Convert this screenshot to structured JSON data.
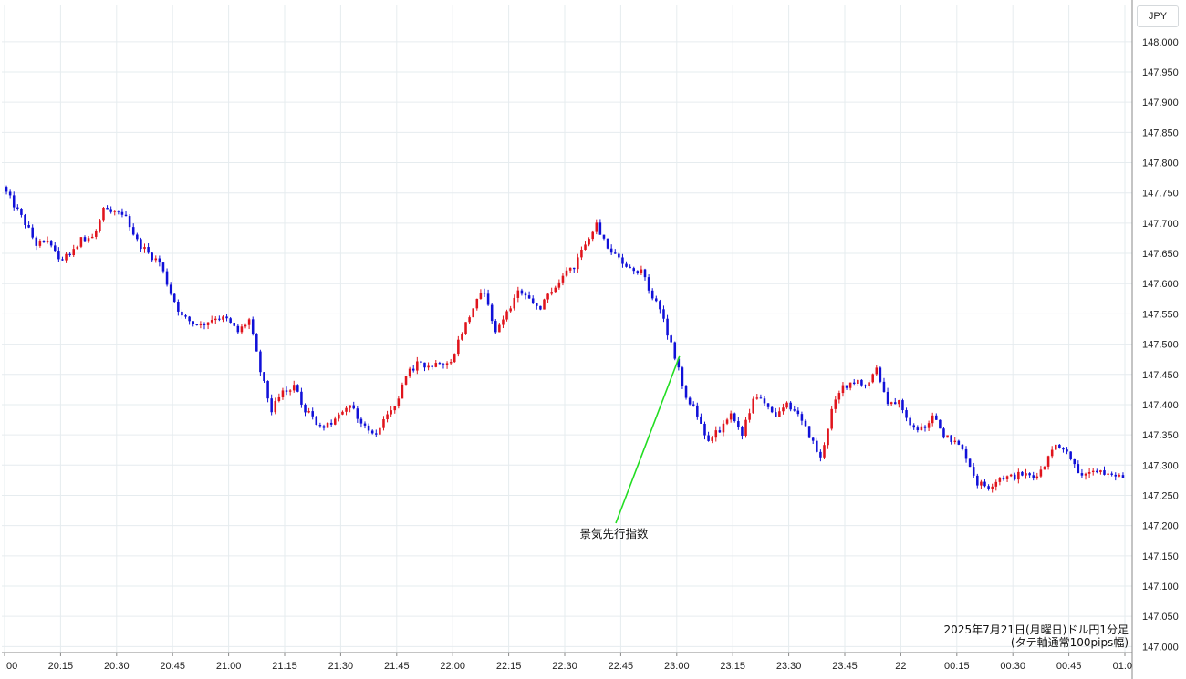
{
  "currency_label": "JPY",
  "caption": {
    "line1": "2025年7月21日(月曜日)ドル円1分足",
    "line2": "(タテ軸通常100pips幅)"
  },
  "colors": {
    "up": "#e0141c",
    "down": "#1010d8",
    "annotation_line": "#22dd22",
    "grid": "#e6ecef"
  },
  "chart_data": {
    "type": "candlestick",
    "title": "",
    "ylim": [
      146.99,
      148.06
    ],
    "y_ticks": [
      "147.000",
      "147.050",
      "147.100",
      "147.150",
      "147.200",
      "147.250",
      "147.300",
      "147.350",
      "147.400",
      "147.450",
      "147.500",
      "147.550",
      "147.600",
      "147.650",
      "147.700",
      "147.750",
      "147.800",
      "147.850",
      "147.900",
      "147.950",
      "148.000"
    ],
    "x_ticks": [
      {
        "label": ":00",
        "t": "20:00"
      },
      {
        "label": "20:15",
        "t": "20:15"
      },
      {
        "label": "20:30",
        "t": "20:30"
      },
      {
        "label": "20:45",
        "t": "20:45"
      },
      {
        "label": "21:00",
        "t": "21:00"
      },
      {
        "label": "21:15",
        "t": "21:15"
      },
      {
        "label": "21:30",
        "t": "21:30"
      },
      {
        "label": "21:45",
        "t": "21:45"
      },
      {
        "label": "22:00",
        "t": "22:00"
      },
      {
        "label": "22:15",
        "t": "22:15"
      },
      {
        "label": "22:30",
        "t": "22:30"
      },
      {
        "label": "22:45",
        "t": "22:45"
      },
      {
        "label": "23:00",
        "t": "23:00"
      },
      {
        "label": "23:15",
        "t": "23:15"
      },
      {
        "label": "23:30",
        "t": "23:30"
      },
      {
        "label": "23:45",
        "t": "23:45"
      },
      {
        "label": "22",
        "t": "00:00"
      },
      {
        "label": "00:15",
        "t": "00:15"
      },
      {
        "label": "00:30",
        "t": "00:30"
      },
      {
        "label": "00:45",
        "t": "00:45"
      },
      {
        "label": "01:0",
        "t": "01:00"
      }
    ],
    "start_time": "20:00",
    "end_time": "01:00",
    "annotation": {
      "text": "景気先行指数",
      "time": "23:00",
      "price": 147.48
    },
    "anchors": [
      [
        "20:00",
        147.76
      ],
      [
        "20:03",
        147.73
      ],
      [
        "20:06",
        147.7
      ],
      [
        "20:09",
        147.665
      ],
      [
        "20:12",
        147.67
      ],
      [
        "20:15",
        147.64
      ],
      [
        "20:18",
        147.65
      ],
      [
        "20:21",
        147.675
      ],
      [
        "20:24",
        147.67
      ],
      [
        "20:27",
        147.72
      ],
      [
        "20:30",
        147.715
      ],
      [
        "20:33",
        147.71
      ],
      [
        "20:36",
        147.67
      ],
      [
        "20:39",
        147.65
      ],
      [
        "20:42",
        147.635
      ],
      [
        "20:45",
        147.585
      ],
      [
        "20:48",
        147.545
      ],
      [
        "20:51",
        147.535
      ],
      [
        "20:54",
        147.535
      ],
      [
        "20:57",
        147.545
      ],
      [
        "21:00",
        147.54
      ],
      [
        "21:03",
        147.52
      ],
      [
        "21:06",
        147.54
      ],
      [
        "21:09",
        147.455
      ],
      [
        "21:12",
        147.39
      ],
      [
        "21:15",
        147.42
      ],
      [
        "21:18",
        147.43
      ],
      [
        "21:21",
        147.39
      ],
      [
        "21:24",
        147.37
      ],
      [
        "21:27",
        147.365
      ],
      [
        "21:30",
        147.38
      ],
      [
        "21:33",
        147.4
      ],
      [
        "21:36",
        147.37
      ],
      [
        "21:39",
        147.35
      ],
      [
        "21:42",
        147.37
      ],
      [
        "21:45",
        147.395
      ],
      [
        "21:48",
        147.445
      ],
      [
        "21:51",
        147.47
      ],
      [
        "21:54",
        147.465
      ],
      [
        "21:57",
        147.47
      ],
      [
        "22:00",
        147.475
      ],
      [
        "22:03",
        147.52
      ],
      [
        "22:06",
        147.56
      ],
      [
        "22:09",
        147.59
      ],
      [
        "22:12",
        147.52
      ],
      [
        "22:15",
        147.55
      ],
      [
        "22:18",
        147.59
      ],
      [
        "22:21",
        147.57
      ],
      [
        "22:24",
        147.56
      ],
      [
        "22:27",
        147.59
      ],
      [
        "22:30",
        147.61
      ],
      [
        "22:33",
        147.63
      ],
      [
        "22:36",
        147.67
      ],
      [
        "22:39",
        147.7
      ],
      [
        "22:42",
        147.66
      ],
      [
        "22:45",
        147.64
      ],
      [
        "22:48",
        147.625
      ],
      [
        "22:51",
        147.62
      ],
      [
        "22:54",
        147.58
      ],
      [
        "22:57",
        147.54
      ],
      [
        "23:00",
        147.48
      ],
      [
        "23:03",
        147.41
      ],
      [
        "23:06",
        147.385
      ],
      [
        "23:09",
        147.335
      ],
      [
        "23:12",
        147.36
      ],
      [
        "23:15",
        147.38
      ],
      [
        "23:18",
        147.35
      ],
      [
        "23:21",
        147.41
      ],
      [
        "23:24",
        147.405
      ],
      [
        "23:27",
        147.38
      ],
      [
        "23:30",
        147.4
      ],
      [
        "23:33",
        147.38
      ],
      [
        "23:36",
        147.35
      ],
      [
        "23:39",
        147.31
      ],
      [
        "23:42",
        147.39
      ],
      [
        "23:45",
        147.43
      ],
      [
        "23:48",
        147.44
      ],
      [
        "23:51",
        147.43
      ],
      [
        "23:54",
        147.46
      ],
      [
        "23:57",
        147.4
      ],
      [
        "00:00",
        147.41
      ],
      [
        "00:03",
        147.37
      ],
      [
        "00:06",
        147.36
      ],
      [
        "00:09",
        147.38
      ],
      [
        "00:12",
        147.35
      ],
      [
        "00:15",
        147.34
      ],
      [
        "00:18",
        147.315
      ],
      [
        "00:21",
        147.27
      ],
      [
        "00:24",
        147.265
      ],
      [
        "00:27",
        147.28
      ],
      [
        "00:30",
        147.28
      ],
      [
        "00:33",
        147.285
      ],
      [
        "00:36",
        147.28
      ],
      [
        "00:39",
        147.3
      ],
      [
        "00:42",
        147.335
      ],
      [
        "00:45",
        147.325
      ],
      [
        "00:48",
        147.29
      ],
      [
        "00:51",
        147.285
      ],
      [
        "00:54",
        147.29
      ],
      [
        "00:57",
        147.28
      ],
      [
        "01:00",
        147.28
      ]
    ]
  }
}
